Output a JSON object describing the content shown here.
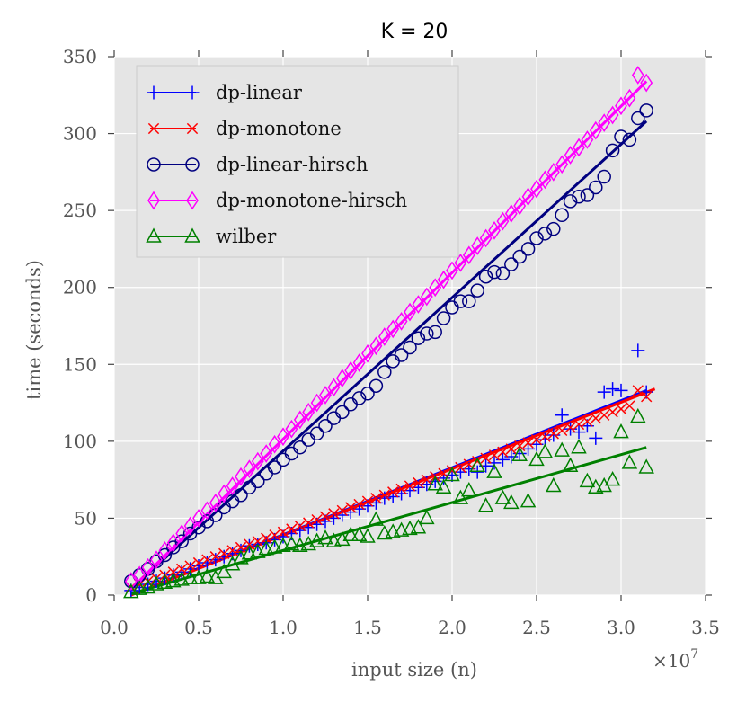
{
  "chart_data": {
    "type": "scatter",
    "title": "K = 20",
    "xlabel": "input size (n)",
    "ylabel": "time (seconds)",
    "x_multiplier_label": "×10",
    "x_multiplier_exp": "7",
    "xlim": [
      0.0,
      3.5
    ],
    "ylim": [
      0,
      350
    ],
    "xticks": [
      "0.0",
      "0.5",
      "1.0",
      "1.5",
      "2.0",
      "2.5",
      "3.0",
      "3.5"
    ],
    "xtick_values": [
      0.0,
      0.5,
      1.0,
      1.5,
      2.0,
      2.5,
      3.0,
      3.5
    ],
    "yticks": [
      "0",
      "50",
      "100",
      "150",
      "200",
      "250",
      "300",
      "350"
    ],
    "ytick_values": [
      0,
      50,
      100,
      150,
      200,
      250,
      300,
      350
    ],
    "grid": true,
    "legend_position": "top-left",
    "series": [
      {
        "name": "dp-linear",
        "color": "#0000ff",
        "marker": "plus",
        "fit": [
          [
            0.1,
            0
          ],
          [
            3.15,
            133
          ]
        ],
        "x": [
          0.1,
          0.15,
          0.2,
          0.25,
          0.3,
          0.35,
          0.4,
          0.45,
          0.5,
          0.55,
          0.6,
          0.65,
          0.7,
          0.75,
          0.8,
          0.85,
          0.9,
          0.95,
          1.0,
          1.05,
          1.1,
          1.15,
          1.2,
          1.25,
          1.3,
          1.35,
          1.4,
          1.45,
          1.5,
          1.55,
          1.6,
          1.65,
          1.7,
          1.75,
          1.8,
          1.85,
          1.9,
          1.95,
          2.0,
          2.05,
          2.1,
          2.15,
          2.2,
          2.25,
          2.3,
          2.35,
          2.4,
          2.45,
          2.5,
          2.55,
          2.6,
          2.65,
          2.7,
          2.75,
          2.8,
          2.85,
          2.9,
          2.95,
          3.0,
          3.1,
          3.15
        ],
        "y": [
          3,
          5,
          7,
          9,
          11,
          13,
          15,
          17,
          19,
          21,
          23,
          25,
          27,
          29,
          32,
          33,
          34,
          36,
          38,
          40,
          42,
          44,
          46,
          48,
          50,
          52,
          54,
          56,
          58,
          60,
          63,
          64,
          66,
          68,
          70,
          72,
          74,
          76,
          78,
          80,
          82,
          80,
          84,
          86,
          88,
          90,
          92,
          95,
          98,
          101,
          104,
          117,
          108,
          106,
          110,
          102,
          132,
          134,
          133,
          159,
          132
        ]
      },
      {
        "name": "dp-monotone",
        "color": "#ff0000",
        "marker": "x",
        "fit": [
          [
            0.1,
            0
          ],
          [
            3.2,
            134
          ]
        ],
        "x": [
          0.1,
          0.15,
          0.2,
          0.25,
          0.3,
          0.35,
          0.4,
          0.45,
          0.5,
          0.55,
          0.6,
          0.65,
          0.7,
          0.75,
          0.8,
          0.85,
          0.9,
          0.95,
          1.0,
          1.05,
          1.1,
          1.15,
          1.2,
          1.25,
          1.3,
          1.35,
          1.4,
          1.45,
          1.5,
          1.55,
          1.6,
          1.65,
          1.7,
          1.75,
          1.8,
          1.85,
          1.9,
          1.95,
          2.0,
          2.05,
          2.1,
          2.15,
          2.2,
          2.25,
          2.3,
          2.35,
          2.4,
          2.45,
          2.5,
          2.55,
          2.6,
          2.65,
          2.7,
          2.75,
          2.8,
          2.85,
          2.9,
          2.95,
          3.0,
          3.05,
          3.1,
          3.15
        ],
        "y": [
          5,
          7,
          9,
          11,
          13,
          15,
          17,
          19,
          21,
          23,
          25,
          27,
          29,
          31,
          33,
          35,
          37,
          39,
          41,
          43,
          45,
          47,
          49,
          51,
          53,
          55,
          57,
          59,
          61,
          63,
          65,
          67,
          69,
          71,
          73,
          75,
          77,
          79,
          81,
          83,
          85,
          87,
          89,
          91,
          93,
          95,
          97,
          99,
          101,
          103,
          105,
          107,
          109,
          111,
          113,
          115,
          117,
          119,
          121,
          123,
          133,
          129
        ]
      },
      {
        "name": "dp-linear-hirsch",
        "color": "#000080",
        "marker": "circle",
        "fit": [
          [
            0.1,
            4
          ],
          [
            3.15,
            308
          ]
        ],
        "x": [
          0.1,
          0.15,
          0.2,
          0.25,
          0.3,
          0.35,
          0.4,
          0.45,
          0.5,
          0.55,
          0.6,
          0.65,
          0.7,
          0.75,
          0.8,
          0.85,
          0.9,
          0.95,
          1.0,
          1.05,
          1.1,
          1.15,
          1.2,
          1.25,
          1.3,
          1.35,
          1.4,
          1.45,
          1.5,
          1.55,
          1.6,
          1.65,
          1.7,
          1.75,
          1.8,
          1.85,
          1.9,
          1.95,
          2.0,
          2.05,
          2.1,
          2.15,
          2.2,
          2.25,
          2.3,
          2.35,
          2.4,
          2.45,
          2.5,
          2.55,
          2.6,
          2.65,
          2.7,
          2.75,
          2.8,
          2.85,
          2.9,
          2.95,
          3.0,
          3.05,
          3.1,
          3.15
        ],
        "y": [
          9,
          13,
          17,
          22,
          26,
          31,
          35,
          40,
          44,
          48,
          52,
          57,
          61,
          65,
          70,
          74,
          79,
          83,
          88,
          92,
          96,
          101,
          105,
          110,
          115,
          119,
          124,
          128,
          131,
          136,
          145,
          152,
          156,
          161,
          167,
          170,
          171,
          180,
          187,
          191,
          191,
          198,
          207,
          210,
          209,
          215,
          220,
          225,
          232,
          235,
          238,
          247,
          256,
          259,
          260,
          265,
          272,
          289,
          298,
          296,
          310,
          315
        ]
      },
      {
        "name": "dp-monotone-hirsch",
        "color": "#ff00ff",
        "marker": "diamond",
        "fit": [
          [
            0.1,
            4
          ],
          [
            3.15,
            334
          ]
        ],
        "x": [
          0.1,
          0.15,
          0.2,
          0.25,
          0.3,
          0.35,
          0.4,
          0.45,
          0.5,
          0.55,
          0.6,
          0.65,
          0.7,
          0.75,
          0.8,
          0.85,
          0.9,
          0.95,
          1.0,
          1.05,
          1.1,
          1.15,
          1.2,
          1.25,
          1.3,
          1.35,
          1.4,
          1.45,
          1.5,
          1.55,
          1.6,
          1.65,
          1.7,
          1.75,
          1.8,
          1.85,
          1.9,
          1.95,
          2.0,
          2.05,
          2.1,
          2.15,
          2.2,
          2.25,
          2.3,
          2.35,
          2.4,
          2.45,
          2.5,
          2.55,
          2.6,
          2.65,
          2.7,
          2.75,
          2.8,
          2.85,
          2.9,
          2.95,
          3.0,
          3.05,
          3.1,
          3.15
        ],
        "y": [
          9,
          13,
          18,
          23,
          29,
          34,
          40,
          45,
          50,
          55,
          60,
          66,
          71,
          77,
          82,
          87,
          92,
          98,
          103,
          108,
          114,
          119,
          125,
          130,
          135,
          141,
          146,
          151,
          157,
          162,
          168,
          173,
          178,
          184,
          189,
          194,
          200,
          205,
          211,
          216,
          221,
          227,
          232,
          237,
          243,
          248,
          253,
          259,
          264,
          270,
          275,
          280,
          286,
          291,
          296,
          302,
          307,
          312,
          318,
          323,
          338,
          333
        ]
      },
      {
        "name": "wilber",
        "color": "#008000",
        "marker": "triangle",
        "fit": [
          [
            0.1,
            1
          ],
          [
            3.15,
            96
          ]
        ],
        "x": [
          0.1,
          0.15,
          0.2,
          0.25,
          0.3,
          0.35,
          0.4,
          0.45,
          0.5,
          0.55,
          0.6,
          0.65,
          0.7,
          0.75,
          0.8,
          0.85,
          0.9,
          0.95,
          1.0,
          1.05,
          1.1,
          1.15,
          1.2,
          1.25,
          1.3,
          1.35,
          1.4,
          1.45,
          1.5,
          1.55,
          1.6,
          1.65,
          1.7,
          1.75,
          1.8,
          1.85,
          1.9,
          1.95,
          2.0,
          2.05,
          2.1,
          2.15,
          2.2,
          2.25,
          2.3,
          2.35,
          2.4,
          2.45,
          2.5,
          2.55,
          2.6,
          2.65,
          2.7,
          2.75,
          2.8,
          2.85,
          2.9,
          2.95,
          3.0,
          3.05,
          3.1,
          3.15
        ],
        "y": [
          2,
          4,
          5,
          7,
          8,
          9,
          10,
          11,
          11,
          12,
          11,
          15,
          20,
          24,
          27,
          28,
          30,
          31,
          32,
          33,
          32,
          33,
          35,
          37,
          35,
          36,
          39,
          39,
          38,
          49,
          40,
          41,
          42,
          43,
          44,
          50,
          72,
          70,
          78,
          63,
          68,
          84,
          58,
          80,
          63,
          60,
          91,
          61,
          88,
          93,
          71,
          94,
          84,
          96,
          74,
          70,
          71,
          75,
          106,
          86,
          116,
          83
        ]
      }
    ]
  }
}
